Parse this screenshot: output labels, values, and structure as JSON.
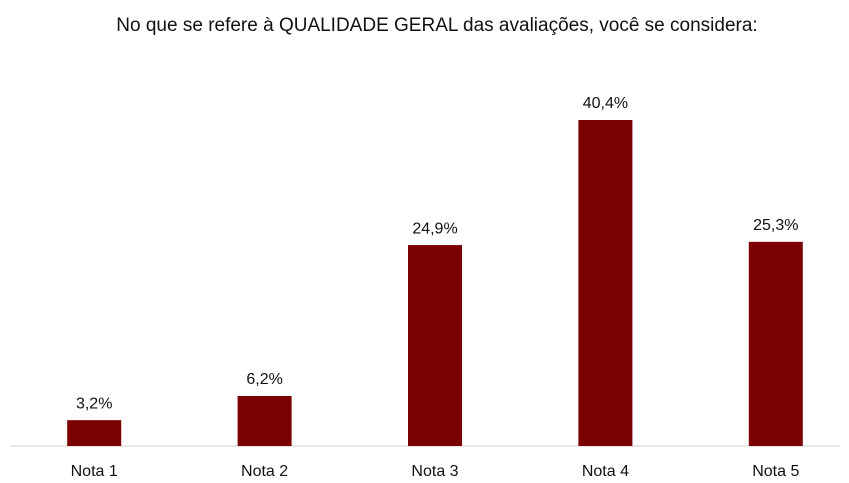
{
  "chart_data": {
    "type": "bar",
    "title": "No que se refere à QUALIDADE GERAL das avaliações, você se considera:",
    "categories": [
      "Nota 1",
      "Nota 2",
      "Nota 3",
      "Nota 4",
      "Nota 5"
    ],
    "values": [
      3.2,
      6.2,
      24.9,
      40.4,
      25.3
    ],
    "value_labels": [
      "3,2%",
      "6,2%",
      "24,9%",
      "40,4%",
      "25,3%"
    ],
    "color": "#7b0000"
  }
}
